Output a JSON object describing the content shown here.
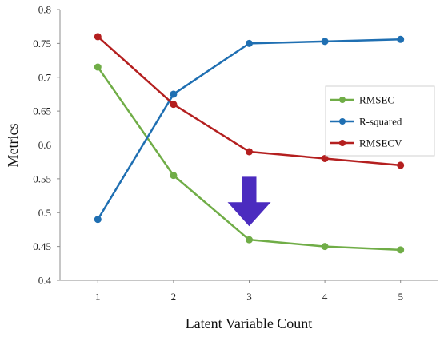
{
  "chart_data": {
    "type": "line",
    "title": "",
    "xlabel": "Latent Variable Count",
    "ylabel": "Metrics",
    "x": [
      1,
      2,
      3,
      4,
      5
    ],
    "xlim": [
      0.5,
      5.5
    ],
    "ylim": [
      0.4,
      0.8
    ],
    "yticks": [
      "0.4",
      "0.45",
      "0.5",
      "0.55",
      "0.6",
      "0.65",
      "0.7",
      "0.75",
      "0.8"
    ],
    "xticks": [
      "1",
      "2",
      "3",
      "4",
      "5"
    ],
    "grid": false,
    "legend_position": "right",
    "series": [
      {
        "name": "RMSEC",
        "color": "#70ad47",
        "values": [
          0.715,
          0.555,
          0.46,
          0.45,
          0.445
        ]
      },
      {
        "name": "R-squared",
        "color": "#1f6fb2",
        "values": [
          0.49,
          0.675,
          0.75,
          0.753,
          0.756
        ]
      },
      {
        "name": "RMSECV",
        "color": "#b41f1f",
        "values": [
          0.76,
          0.66,
          0.59,
          0.58,
          0.57
        ]
      }
    ],
    "annotations": [
      {
        "type": "arrow-down",
        "color": "#4b2bbf",
        "x": 3,
        "y_top": 0.553,
        "y_tip": 0.48
      }
    ]
  }
}
